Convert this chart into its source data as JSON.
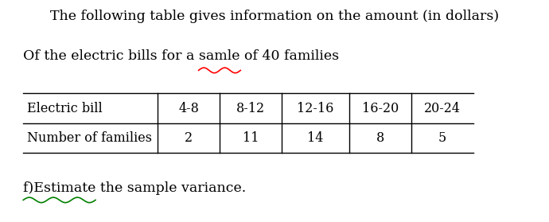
{
  "title_line1": "The following table gives information on the amount (in dollars)",
  "title_line2": "Of the electric bills for a samle of 40 families",
  "table_col_headers": [
    "Electric bill",
    "4-8",
    "8-12",
    "12-16",
    "16-20",
    "20-24"
  ],
  "table_row_label": "Number of families",
  "table_values": [
    "2",
    "11",
    "14",
    "8",
    "5"
  ],
  "footer_text": "f)Estimate the sample variance.",
  "bg_color": "#ffffff",
  "text_color": "#000000",
  "font_size_title": 12.5,
  "font_size_subtitle": 12.5,
  "font_size_table": 11.5,
  "font_size_footer": 12.5,
  "samle_underline_color": "red",
  "festimate_underline_color": "green"
}
